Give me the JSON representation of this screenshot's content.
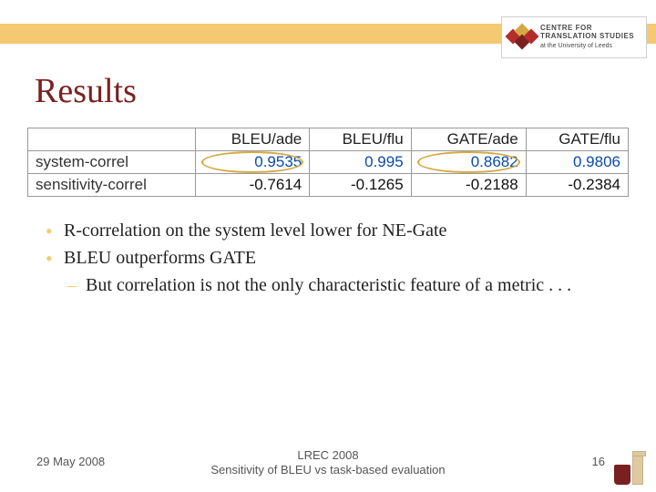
{
  "accent_color": "#f4c972",
  "title_color": "#7a2020",
  "logo_top": {
    "line1": "CENTRE FOR",
    "line2": "TRANSLATION STUDIES",
    "line3": "at the University of Leeds"
  },
  "title": "Results",
  "table": {
    "columns": [
      "BLEU/ade",
      "BLEU/flu",
      "GATE/ade",
      "GATE/flu"
    ],
    "rows": [
      {
        "label": "system-correl",
        "cells": [
          {
            "v": "0.9535",
            "color": "blue",
            "highlight": true
          },
          {
            "v": "0.995",
            "color": "blue",
            "highlight": false
          },
          {
            "v": "0.8682",
            "color": "blue",
            "highlight": true
          },
          {
            "v": "0.9806",
            "color": "blue",
            "highlight": false
          }
        ]
      },
      {
        "label": "sensitivity-correl",
        "cells": [
          {
            "v": "-0.7614",
            "color": "black",
            "highlight": false
          },
          {
            "v": "-0.1265",
            "color": "black",
            "highlight": false
          },
          {
            "v": "-0.2188",
            "color": "black",
            "highlight": false
          },
          {
            "v": "-0.2384",
            "color": "black",
            "highlight": false
          }
        ]
      }
    ]
  },
  "bullets": {
    "b1": "R-correlation on the system level lower for NE-Gate",
    "b2": "BLEU outperforms GATE",
    "b2_sub": "But correlation is not the only characteristic feature of a metric . . ."
  },
  "footer": {
    "date": "29 May 2008",
    "center_l1": "LREC 2008",
    "center_l2": "Sensitivity of BLEU vs task-based evaluation",
    "page": "16"
  }
}
